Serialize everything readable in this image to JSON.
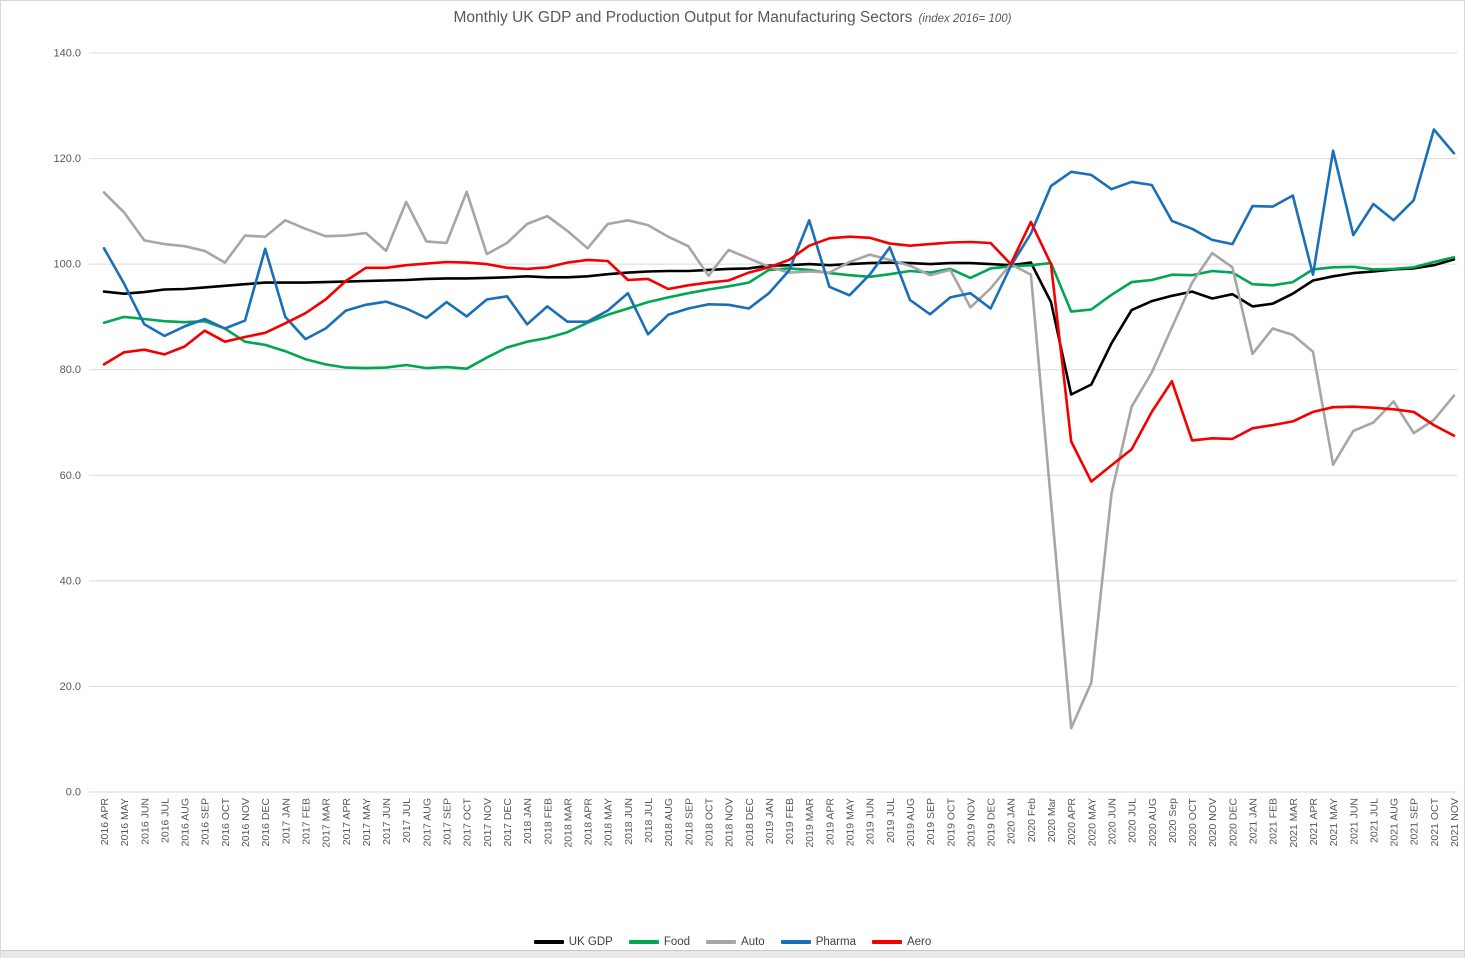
{
  "title": {
    "main": "Monthly UK GDP and Production Output for Manufacturing Sectors",
    "subtitle": "(index 2016= 100)"
  },
  "colors": {
    "uk_gdp": "#000000",
    "food": "#00a651",
    "auto": "#a6a6a6",
    "pharma": "#1a70b8",
    "aero": "#f40000",
    "gridline": "#d9d9d9",
    "axis_text": "#595959"
  },
  "y_axis": {
    "tick_labels": [
      "0.0",
      "20.0",
      "40.0",
      "60.0",
      "80.0",
      "100.0",
      "120.0",
      "140.0"
    ]
  },
  "chart_data": {
    "type": "line",
    "title": "Monthly UK GDP and Production Output for Manufacturing Sectors",
    "subtitle": "(index 2016= 100)",
    "ylim": [
      0,
      140
    ],
    "ytick_step": 20,
    "grid": "horizontal",
    "legend_position": "bottom",
    "x_labels": [
      "2016 APR",
      "2016 MAY",
      "2016 JUN",
      "2016 JUL",
      "2016 AUG",
      "2016 SEP",
      "2016 OCT",
      "2016 NOV",
      "2016 DEC",
      "2017 JAN",
      "2017 FEB",
      "2017 MAR",
      "2017 APR",
      "2017 MAY",
      "2017 JUN",
      "2017 JUL",
      "2017 AUG",
      "2017 SEP",
      "2017 OCT",
      "2017 NOV",
      "2017 DEC",
      "2018 JAN",
      "2018 FEB",
      "2018 MAR",
      "2018 APR",
      "2018 MAY",
      "2018 JUN",
      "2018 JUL",
      "2018 AUG",
      "2018 SEP",
      "2018 OCT",
      "2018 NOV",
      "2018 DEC",
      "2019 JAN",
      "2019 FEB",
      "2019 MAR",
      "2019 APR",
      "2019 MAY",
      "2019 JUN",
      "2019 JUL",
      "2019 AUG",
      "2019 SEP",
      "2019 OCT",
      "2019 NOV",
      "2019 DEC",
      "2020 JAN",
      "2020 Feb",
      "2020 Mar",
      "2020 APR",
      "2020 MAY",
      "2020 JUN",
      "2020 JUL",
      "2020 AUG",
      "2020 Sep",
      "2020 OCT",
      "2020 NOV",
      "2020 DEC",
      "2021 JAN",
      "2021 FEB",
      "2021 MAR",
      "2021 APR",
      "2021 MAY",
      "2021 JUN",
      "2021 JUL",
      "2021 AUG",
      "2021 SEP",
      "2021 OCT",
      "2021 NOV"
    ],
    "series": [
      {
        "name": "UK GDP",
        "color": "#000000",
        "values": [
          94.8,
          94.4,
          94.7,
          95.2,
          95.3,
          95.6,
          95.9,
          96.2,
          96.5,
          96.5,
          96.5,
          96.6,
          96.7,
          96.8,
          96.9,
          97.0,
          97.2,
          97.3,
          97.3,
          97.4,
          97.5,
          97.7,
          97.5,
          97.5,
          97.7,
          98.1,
          98.4,
          98.6,
          98.7,
          98.7,
          98.9,
          99.1,
          99.2,
          99.7,
          99.8,
          100.0,
          99.8,
          100.0,
          100.2,
          100.3,
          100.2,
          100.0,
          100.2,
          100.2,
          100.0,
          99.8,
          100.3,
          92.8,
          75.3,
          77.2,
          85.0,
          91.3,
          93.0,
          94.0,
          94.8,
          93.5,
          94.3,
          92.0,
          92.5,
          94.4,
          96.9,
          97.7,
          98.3,
          98.6,
          99.0,
          99.2,
          99.8,
          100.9
        ]
      },
      {
        "name": "Food",
        "color": "#00a651",
        "values": [
          88.9,
          90.0,
          89.6,
          89.2,
          89.0,
          89.2,
          87.8,
          85.3,
          84.7,
          83.5,
          82.0,
          81.0,
          80.4,
          80.3,
          80.4,
          80.9,
          80.3,
          80.5,
          80.2,
          82.3,
          84.2,
          85.3,
          86.0,
          87.1,
          88.9,
          90.4,
          91.6,
          92.8,
          93.7,
          94.5,
          95.2,
          95.8,
          96.5,
          98.9,
          99.2,
          98.9,
          98.3,
          97.9,
          97.6,
          98.1,
          98.7,
          98.4,
          99.1,
          97.4,
          99.2,
          99.6,
          99.8,
          100.2,
          91.0,
          91.4,
          94.2,
          96.6,
          97.0,
          98.0,
          97.9,
          98.7,
          98.4,
          96.2,
          96.0,
          96.6,
          99.0,
          99.4,
          99.5,
          99.0,
          99.1,
          99.4,
          100.4,
          101.3
        ]
      },
      {
        "name": "Auto",
        "color": "#a6a6a6",
        "values": [
          113.6,
          109.8,
          104.5,
          103.8,
          103.4,
          102.5,
          100.3,
          105.4,
          105.2,
          108.3,
          106.7,
          105.3,
          105.4,
          105.9,
          102.5,
          111.8,
          104.3,
          104.0,
          113.7,
          101.9,
          104.0,
          107.6,
          109.1,
          106.3,
          103.0,
          107.6,
          108.3,
          107.4,
          105.2,
          103.4,
          97.8,
          102.7,
          101.1,
          99.5,
          98.4,
          98.6,
          98.4,
          100.4,
          101.8,
          100.8,
          99.7,
          97.9,
          98.9,
          91.8,
          95.4,
          100.0,
          98.0,
          55.0,
          12.1,
          20.7,
          56.6,
          73.0,
          79.5,
          88.0,
          96.5,
          102.1,
          99.4,
          83.0,
          87.8,
          86.6,
          83.4,
          62.0,
          68.4,
          70.0,
          74.0,
          68.0,
          70.5,
          75.1
        ]
      },
      {
        "name": "Pharma",
        "color": "#1a70b8",
        "values": [
          103.0,
          96.3,
          88.6,
          86.4,
          88.2,
          89.6,
          87.8,
          89.3,
          102.9,
          90.0,
          85.8,
          87.8,
          91.2,
          92.3,
          92.9,
          91.6,
          89.8,
          92.8,
          90.1,
          93.3,
          93.9,
          88.6,
          92.0,
          89.1,
          89.1,
          91.2,
          94.5,
          86.7,
          90.4,
          91.6,
          92.4,
          92.3,
          91.6,
          94.5,
          98.8,
          108.3,
          95.7,
          94.1,
          98.0,
          103.2,
          93.2,
          90.5,
          93.7,
          94.5,
          91.6,
          99.6,
          105.8,
          114.8,
          117.5,
          116.9,
          114.2,
          115.6,
          115.0,
          108.2,
          106.7,
          104.6,
          103.8,
          111.0,
          110.9,
          113.0,
          98.0,
          121.5,
          105.5,
          111.4,
          108.3,
          112.1,
          125.5,
          121.0
        ]
      },
      {
        "name": "Aero",
        "color": "#f40000",
        "values": [
          81.0,
          83.3,
          83.8,
          82.9,
          84.4,
          87.4,
          85.3,
          86.2,
          87.0,
          88.8,
          90.7,
          93.3,
          96.8,
          99.3,
          99.3,
          99.8,
          100.1,
          100.4,
          100.3,
          100.0,
          99.3,
          99.1,
          99.4,
          100.3,
          100.8,
          100.6,
          97.0,
          97.2,
          95.3,
          96.0,
          96.5,
          96.9,
          98.4,
          99.4,
          100.8,
          103.5,
          104.9,
          105.2,
          105.0,
          103.9,
          103.5,
          103.8,
          104.1,
          104.2,
          104.0,
          100.0,
          108.0,
          100.0,
          66.4,
          58.8,
          61.9,
          64.9,
          72.0,
          77.8,
          66.6,
          67.0,
          66.9,
          68.9,
          69.5,
          70.2,
          72.0,
          72.9,
          73.0,
          72.8,
          72.5,
          72.0,
          69.5,
          67.5
        ]
      }
    ]
  },
  "legend": {
    "items": [
      {
        "label": "UK GDP",
        "color": "#000000"
      },
      {
        "label": "Food",
        "color": "#00a651"
      },
      {
        "label": "Auto",
        "color": "#a6a6a6"
      },
      {
        "label": "Pharma",
        "color": "#1a70b8"
      },
      {
        "label": "Aero",
        "color": "#f40000"
      }
    ]
  }
}
